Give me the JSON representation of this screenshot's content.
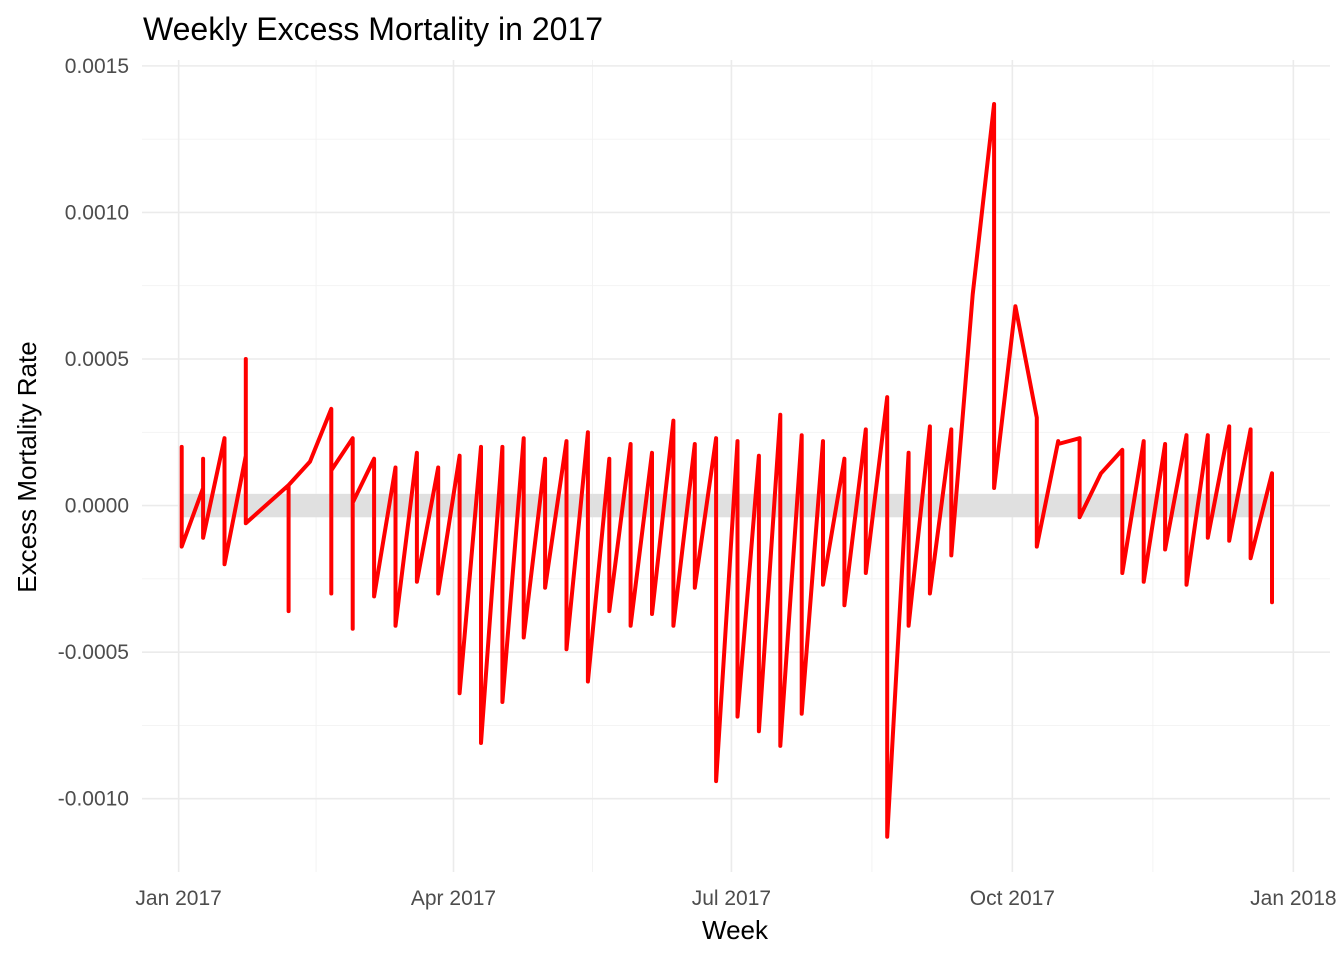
{
  "chart_data": {
    "type": "line",
    "title": "Weekly Excess Mortality in 2017",
    "xlabel": "Week",
    "ylabel": "Excess Mortality Rate",
    "x_ticks": [
      {
        "date": "2017-01-01",
        "label": "Jan 2017"
      },
      {
        "date": "2017-04-01",
        "label": "Apr 2017"
      },
      {
        "date": "2017-07-01",
        "label": "Jul 2017"
      },
      {
        "date": "2017-10-01",
        "label": "Oct 2017"
      },
      {
        "date": "2018-01-01",
        "label": "Jan 2018"
      }
    ],
    "y_ticks": [
      {
        "value": 0.0015,
        "label": "0.0015"
      },
      {
        "value": 0.001,
        "label": "0.0010"
      },
      {
        "value": 0.0005,
        "label": "0.0005"
      },
      {
        "value": 0.0,
        "label": "0.0000"
      },
      {
        "value": -0.0005,
        "label": "-0.0005"
      },
      {
        "value": -0.001,
        "label": "-0.0010"
      }
    ],
    "xlim": [
      "2016-12-20",
      "2018-01-13"
    ],
    "ylim": [
      -0.00125,
      0.00152
    ],
    "grid": true,
    "reference_band": {
      "ymin": -4e-05,
      "ymax": 4e-05,
      "color": "#e0e0e0"
    },
    "series_color": "#ff0000",
    "x": [
      "2017-01-02",
      "2017-01-02",
      "2017-01-09",
      "2017-01-09",
      "2017-01-09",
      "2017-01-16",
      "2017-01-16",
      "2017-01-23",
      "2017-01-23",
      "2017-01-23",
      "2017-02-06",
      "2017-02-06",
      "2017-02-06",
      "2017-02-13",
      "2017-02-20",
      "2017-02-20",
      "2017-02-20",
      "2017-02-27",
      "2017-02-27",
      "2017-02-27",
      "2017-03-06",
      "2017-03-06",
      "2017-03-13",
      "2017-03-13",
      "2017-03-20",
      "2017-03-20",
      "2017-03-27",
      "2017-03-27",
      "2017-04-03",
      "2017-04-03",
      "2017-04-10",
      "2017-04-10",
      "2017-04-17",
      "2017-04-17",
      "2017-04-24",
      "2017-04-24",
      "2017-05-01",
      "2017-05-01",
      "2017-05-08",
      "2017-05-08",
      "2017-05-15",
      "2017-05-15",
      "2017-05-22",
      "2017-05-22",
      "2017-05-29",
      "2017-05-29",
      "2017-06-05",
      "2017-06-05",
      "2017-06-12",
      "2017-06-12",
      "2017-06-19",
      "2017-06-19",
      "2017-06-26",
      "2017-06-26",
      "2017-07-03",
      "2017-07-03",
      "2017-07-10",
      "2017-07-10",
      "2017-07-17",
      "2017-07-17",
      "2017-07-24",
      "2017-07-24",
      "2017-07-31",
      "2017-07-31",
      "2017-08-07",
      "2017-08-07",
      "2017-08-14",
      "2017-08-14",
      "2017-08-21",
      "2017-08-21",
      "2017-08-28",
      "2017-08-28",
      "2017-09-04",
      "2017-09-04",
      "2017-09-11",
      "2017-09-11",
      "2017-09-18",
      "2017-09-25",
      "2017-09-25",
      "2017-10-02",
      "2017-10-09",
      "2017-10-09",
      "2017-10-16",
      "2017-10-16",
      "2017-10-23",
      "2017-10-23",
      "2017-10-30",
      "2017-11-06",
      "2017-11-06",
      "2017-11-13",
      "2017-11-13",
      "2017-11-20",
      "2017-11-20",
      "2017-11-27",
      "2017-11-27",
      "2017-12-04",
      "2017-12-04",
      "2017-12-11",
      "2017-12-11",
      "2017-12-18",
      "2017-12-18",
      "2017-12-25",
      "2017-12-25"
    ],
    "series": [
      {
        "values": [
          0.0002,
          -0.00014,
          6e-05,
          0.00016,
          -0.00011,
          0.00023,
          -0.0002,
          0.00017,
          0.0005,
          -6e-05,
          7e-05,
          -0.00036,
          7e-05,
          0.00015,
          0.00033,
          -0.0003,
          0.00012,
          0.00023,
          -0.00042,
          1e-05,
          0.00016,
          -0.00031,
          0.00013,
          -0.00041,
          0.00018,
          -0.00026,
          0.00013,
          -0.0003,
          0.00017,
          -0.00064,
          0.0002,
          -0.00081,
          0.0002,
          -0.00067,
          0.00023,
          -0.00045,
          0.00016,
          -0.00028,
          0.00022,
          -0.00049,
          0.00025,
          -0.0006,
          0.00016,
          -0.00036,
          0.00021,
          -0.00041,
          0.00018,
          -0.00037,
          0.00029,
          -0.00041,
          0.00021,
          -0.00028,
          0.00023,
          -0.00094,
          0.00022,
          -0.00072,
          0.00017,
          -0.00077,
          0.00031,
          -0.00082,
          0.00024,
          -0.00071,
          0.00022,
          -0.00027,
          0.00016,
          -0.00034,
          0.00026,
          -0.00023,
          0.00037,
          -0.00113,
          0.00018,
          -0.00041,
          0.00027,
          -0.0003,
          0.00026,
          -0.00017,
          0.00072,
          0.00137,
          6e-05,
          0.00068,
          0.0003,
          -0.00014,
          0.00022,
          0.00021,
          0.00023,
          -4e-05,
          0.00011,
          0.00019,
          -0.00023,
          0.00022,
          -0.00026,
          0.00021,
          -0.00015,
          0.00024,
          -0.00027,
          0.00024,
          -0.00011,
          0.00027,
          -0.00012,
          0.00026,
          -0.00018,
          0.00011,
          -0.00033
        ]
      }
    ]
  }
}
